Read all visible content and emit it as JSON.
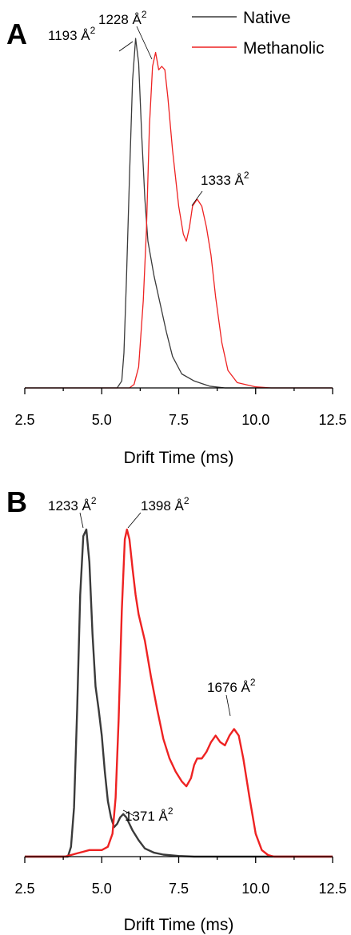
{
  "colors": {
    "native": "#3a3a3a",
    "methanolic": "#ee2222",
    "axis": "#000000"
  },
  "legend": {
    "items": [
      {
        "label": "Native",
        "color": "#3a3a3a"
      },
      {
        "label": "Methanolic",
        "color": "#ee2222"
      }
    ],
    "placement": "top-right"
  },
  "chart_data": [
    {
      "type": "line",
      "panel": "A",
      "xlabel": "Drift Time (ms)",
      "ylabel": "",
      "xlim": [
        2.5,
        12.5
      ],
      "xticks": [
        "2.5",
        "5.0",
        "7.5",
        "10.0",
        "12.5"
      ],
      "grid": false,
      "series": [
        {
          "name": "Native",
          "color": "#3a3a3a",
          "width": 1.3,
          "points": [
            [
              2.5,
              0
            ],
            [
              5.5,
              0
            ],
            [
              5.65,
              0.02
            ],
            [
              5.72,
              0.1
            ],
            [
              5.8,
              0.3
            ],
            [
              5.9,
              0.6
            ],
            [
              6.0,
              0.88
            ],
            [
              6.1,
              1.0
            ],
            [
              6.2,
              0.93
            ],
            [
              6.3,
              0.72
            ],
            [
              6.4,
              0.54
            ],
            [
              6.5,
              0.42
            ],
            [
              6.7,
              0.32
            ],
            [
              6.9,
              0.24
            ],
            [
              7.1,
              0.16
            ],
            [
              7.3,
              0.09
            ],
            [
              7.6,
              0.04
            ],
            [
              8.0,
              0.02
            ],
            [
              8.5,
              0.005
            ],
            [
              9.0,
              0
            ],
            [
              12.5,
              0
            ]
          ]
        },
        {
          "name": "Methanolic",
          "color": "#ee2222",
          "width": 1.3,
          "points": [
            [
              2.5,
              0
            ],
            [
              5.9,
              0
            ],
            [
              6.05,
              0.01
            ],
            [
              6.2,
              0.06
            ],
            [
              6.35,
              0.25
            ],
            [
              6.45,
              0.45
            ],
            [
              6.55,
              0.75
            ],
            [
              6.65,
              0.92
            ],
            [
              6.75,
              0.96
            ],
            [
              6.85,
              0.91
            ],
            [
              6.95,
              0.92
            ],
            [
              7.05,
              0.91
            ],
            [
              7.15,
              0.83
            ],
            [
              7.3,
              0.68
            ],
            [
              7.5,
              0.52
            ],
            [
              7.65,
              0.44
            ],
            [
              7.75,
              0.42
            ],
            [
              7.85,
              0.46
            ],
            [
              7.95,
              0.52
            ],
            [
              8.1,
              0.54
            ],
            [
              8.25,
              0.52
            ],
            [
              8.4,
              0.46
            ],
            [
              8.55,
              0.38
            ],
            [
              8.7,
              0.26
            ],
            [
              8.9,
              0.13
            ],
            [
              9.1,
              0.05
            ],
            [
              9.4,
              0.015
            ],
            [
              10.0,
              0.003
            ],
            [
              10.5,
              0
            ],
            [
              12.5,
              0
            ]
          ]
        }
      ],
      "annotations": [
        {
          "label": "1193 Å",
          "superscript": "2",
          "series": "Native",
          "x": 6.1,
          "y": 1.0
        },
        {
          "label": "1228 Å",
          "superscript": "2",
          "series": "Methanolic",
          "x": 6.75,
          "y": 0.96
        },
        {
          "label": "1333 Å",
          "superscript": "2",
          "series": "Methanolic",
          "x": 8.1,
          "y": 0.54
        }
      ]
    },
    {
      "type": "line",
      "panel": "B",
      "xlabel": "Drift Time (ms)",
      "ylabel": "",
      "xlim": [
        2.5,
        12.5
      ],
      "xticks": [
        "2.5",
        "5.0",
        "7.5",
        "10.0",
        "12.5"
      ],
      "grid": false,
      "series": [
        {
          "name": "Native",
          "color": "#3a3a3a",
          "width": 2.4,
          "points": [
            [
              2.5,
              0
            ],
            [
              3.9,
              0
            ],
            [
              4.0,
              0.03
            ],
            [
              4.1,
              0.15
            ],
            [
              4.2,
              0.45
            ],
            [
              4.3,
              0.8
            ],
            [
              4.4,
              0.98
            ],
            [
              4.5,
              1.0
            ],
            [
              4.6,
              0.9
            ],
            [
              4.7,
              0.68
            ],
            [
              4.8,
              0.52
            ],
            [
              4.9,
              0.45
            ],
            [
              5.0,
              0.37
            ],
            [
              5.1,
              0.26
            ],
            [
              5.2,
              0.17
            ],
            [
              5.3,
              0.12
            ],
            [
              5.4,
              0.09
            ],
            [
              5.5,
              0.1
            ],
            [
              5.6,
              0.12
            ],
            [
              5.7,
              0.13
            ],
            [
              5.8,
              0.12
            ],
            [
              5.9,
              0.1
            ],
            [
              6.0,
              0.08
            ],
            [
              6.2,
              0.05
            ],
            [
              6.4,
              0.025
            ],
            [
              6.7,
              0.012
            ],
            [
              7.0,
              0.006
            ],
            [
              7.5,
              0.002
            ],
            [
              8.0,
              0
            ],
            [
              12.5,
              0
            ]
          ]
        },
        {
          "name": "Methanolic",
          "color": "#ee2222",
          "width": 2.4,
          "points": [
            [
              2.5,
              0
            ],
            [
              3.8,
              0
            ],
            [
              4.0,
              0.005
            ],
            [
              4.2,
              0.01
            ],
            [
              4.4,
              0.015
            ],
            [
              4.6,
              0.02
            ],
            [
              4.8,
              0.02
            ],
            [
              5.0,
              0.02
            ],
            [
              5.2,
              0.03
            ],
            [
              5.35,
              0.07
            ],
            [
              5.45,
              0.18
            ],
            [
              5.55,
              0.42
            ],
            [
              5.65,
              0.75
            ],
            [
              5.75,
              0.97
            ],
            [
              5.82,
              1.0
            ],
            [
              5.9,
              0.97
            ],
            [
              6.0,
              0.88
            ],
            [
              6.1,
              0.8
            ],
            [
              6.2,
              0.74
            ],
            [
              6.4,
              0.66
            ],
            [
              6.6,
              0.55
            ],
            [
              6.8,
              0.45
            ],
            [
              7.0,
              0.36
            ],
            [
              7.2,
              0.3
            ],
            [
              7.4,
              0.26
            ],
            [
              7.6,
              0.23
            ],
            [
              7.75,
              0.215
            ],
            [
              7.9,
              0.24
            ],
            [
              8.0,
              0.28
            ],
            [
              8.1,
              0.3
            ],
            [
              8.25,
              0.3
            ],
            [
              8.4,
              0.32
            ],
            [
              8.55,
              0.35
            ],
            [
              8.7,
              0.37
            ],
            [
              8.85,
              0.35
            ],
            [
              9.0,
              0.34
            ],
            [
              9.15,
              0.37
            ],
            [
              9.3,
              0.39
            ],
            [
              9.45,
              0.37
            ],
            [
              9.6,
              0.3
            ],
            [
              9.8,
              0.18
            ],
            [
              10.0,
              0.07
            ],
            [
              10.2,
              0.02
            ],
            [
              10.4,
              0.005
            ],
            [
              10.6,
              0
            ],
            [
              12.5,
              0
            ]
          ]
        }
      ],
      "annotations": [
        {
          "label": "1233 Å",
          "superscript": "2",
          "series": "Native",
          "x": 4.5,
          "y": 1.0
        },
        {
          "label": "1398 Å",
          "superscript": "2",
          "series": "Methanolic",
          "x": 5.82,
          "y": 1.0
        },
        {
          "label": "1371 Å",
          "superscript": "2",
          "series": "Native",
          "x": 5.7,
          "y": 0.13
        },
        {
          "label": "1676 Å",
          "superscript": "2",
          "series": "Methanolic",
          "x": 9.3,
          "y": 0.39
        }
      ]
    }
  ]
}
